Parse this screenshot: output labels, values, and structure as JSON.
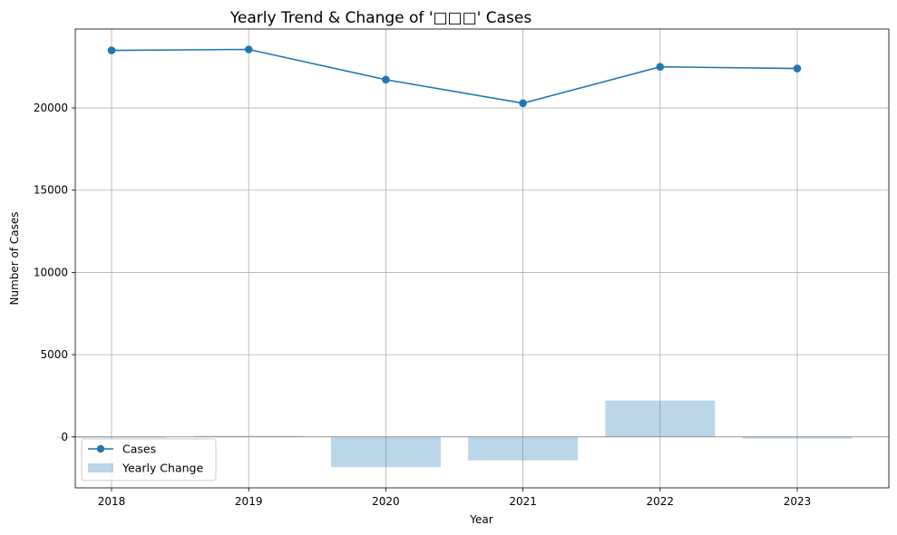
{
  "chart_data": {
    "type": "line",
    "title": "Yearly Trend & Change of '□□□' Cases",
    "xlabel": "Year",
    "ylabel": "Number of Cases",
    "categories": [
      "2018",
      "2019",
      "2020",
      "2021",
      "2022",
      "2023"
    ],
    "ylim": [
      -3100,
      24800
    ],
    "yticks": [
      0,
      5000,
      10000,
      15000,
      20000
    ],
    "grid": true,
    "legend_position": "lower-left",
    "series": [
      {
        "name": "Cases",
        "kind": "line",
        "color": "#1f77b4",
        "values": [
          23500,
          23560,
          21720,
          20290,
          22500,
          22400
        ]
      },
      {
        "name": "Yearly Change",
        "kind": "bar",
        "color": "#1f77b4",
        "alpha": 0.3,
        "values": [
          0,
          60,
          -1840,
          -1430,
          2210,
          -100
        ]
      }
    ]
  }
}
